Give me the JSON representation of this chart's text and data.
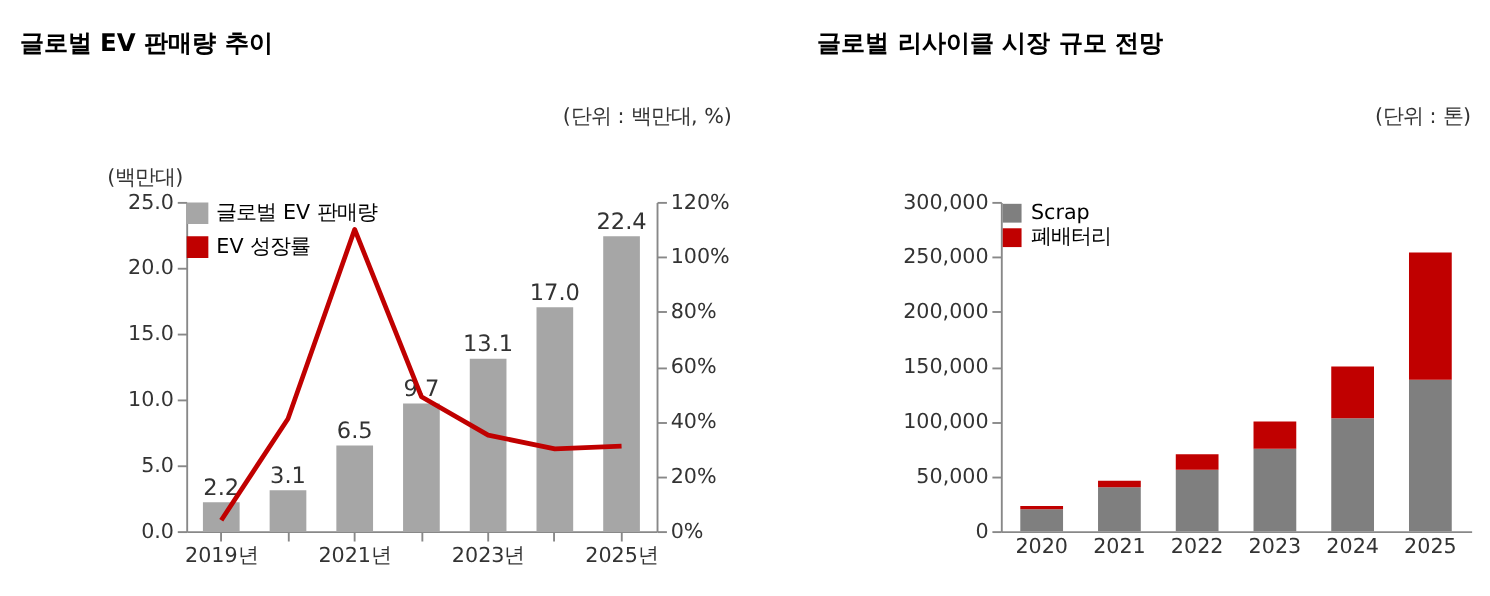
{
  "chart_data": [
    {
      "type": "bar",
      "title": "글로벌 EV 판매량 추이",
      "annotations": [
        "(단위 : 백만대, %)"
      ],
      "ylabel": "(백만대)",
      "categories": [
        "2019년",
        null,
        "2021년",
        null,
        "2023년",
        null,
        "2025년"
      ],
      "series": [
        {
          "name": "글로벌 EV 판매량",
          "type": "bar",
          "color": "#a6a6a6",
          "values": [
            2.2,
            3.1,
            6.5,
            9.7,
            13.1,
            17.0,
            22.4
          ],
          "value_labels": [
            "2.2",
            "3.1",
            "6.5",
            "9.7",
            "13.1",
            "17.0",
            "22.4"
          ]
        },
        {
          "name": "EV 성장률",
          "type": "line",
          "axis": "y2",
          "color": "#c00000",
          "values": [
            4,
            41,
            110,
            49,
            35,
            30,
            31
          ]
        }
      ],
      "ylim": [
        0,
        25
      ],
      "yticks": [
        {
          "value": 0,
          "label": "0.0"
        },
        {
          "value": 5,
          "label": "5.0"
        },
        {
          "value": 10,
          "label": "10.0"
        },
        {
          "value": 15,
          "label": "15.0"
        },
        {
          "value": 20,
          "label": "20.0"
        },
        {
          "value": 25,
          "label": "25.0"
        }
      ],
      "y2lim": [
        0,
        120
      ],
      "y2ticks": [
        {
          "value": 0,
          "label": "0%"
        },
        {
          "value": 20,
          "label": "20%"
        },
        {
          "value": 40,
          "label": "40%"
        },
        {
          "value": 60,
          "label": "60%"
        },
        {
          "value": 80,
          "label": "80%"
        },
        {
          "value": 100,
          "label": "100%"
        },
        {
          "value": 120,
          "label": "120%"
        }
      ],
      "legend": "top left"
    },
    {
      "type": "bar",
      "stacked": true,
      "title": "글로벌 리사이클 시장 규모 전망",
      "annotations": [
        "(단위 : 톤)"
      ],
      "categories": [
        "2020",
        "2021",
        "2022",
        "2023",
        "2024",
        "2025"
      ],
      "series": [
        {
          "name": "Scrap",
          "color": "#7f7f7f",
          "values": [
            20000,
            40000,
            56000,
            75000,
            103000,
            138000
          ]
        },
        {
          "name": "폐배터리",
          "color": "#c00000",
          "values": [
            3000,
            6000,
            14000,
            25000,
            47000,
            116000
          ]
        }
      ],
      "ylim": [
        0,
        300000
      ],
      "yticks": [
        {
          "value": 0,
          "label": "0"
        },
        {
          "value": 50000,
          "label": "50,000"
        },
        {
          "value": 100000,
          "label": "100,000"
        },
        {
          "value": 150000,
          "label": "150,000"
        },
        {
          "value": 200000,
          "label": "200,000"
        },
        {
          "value": 250000,
          "label": "250,000"
        },
        {
          "value": 300000,
          "label": "300,000"
        }
      ],
      "legend": "top left"
    }
  ]
}
